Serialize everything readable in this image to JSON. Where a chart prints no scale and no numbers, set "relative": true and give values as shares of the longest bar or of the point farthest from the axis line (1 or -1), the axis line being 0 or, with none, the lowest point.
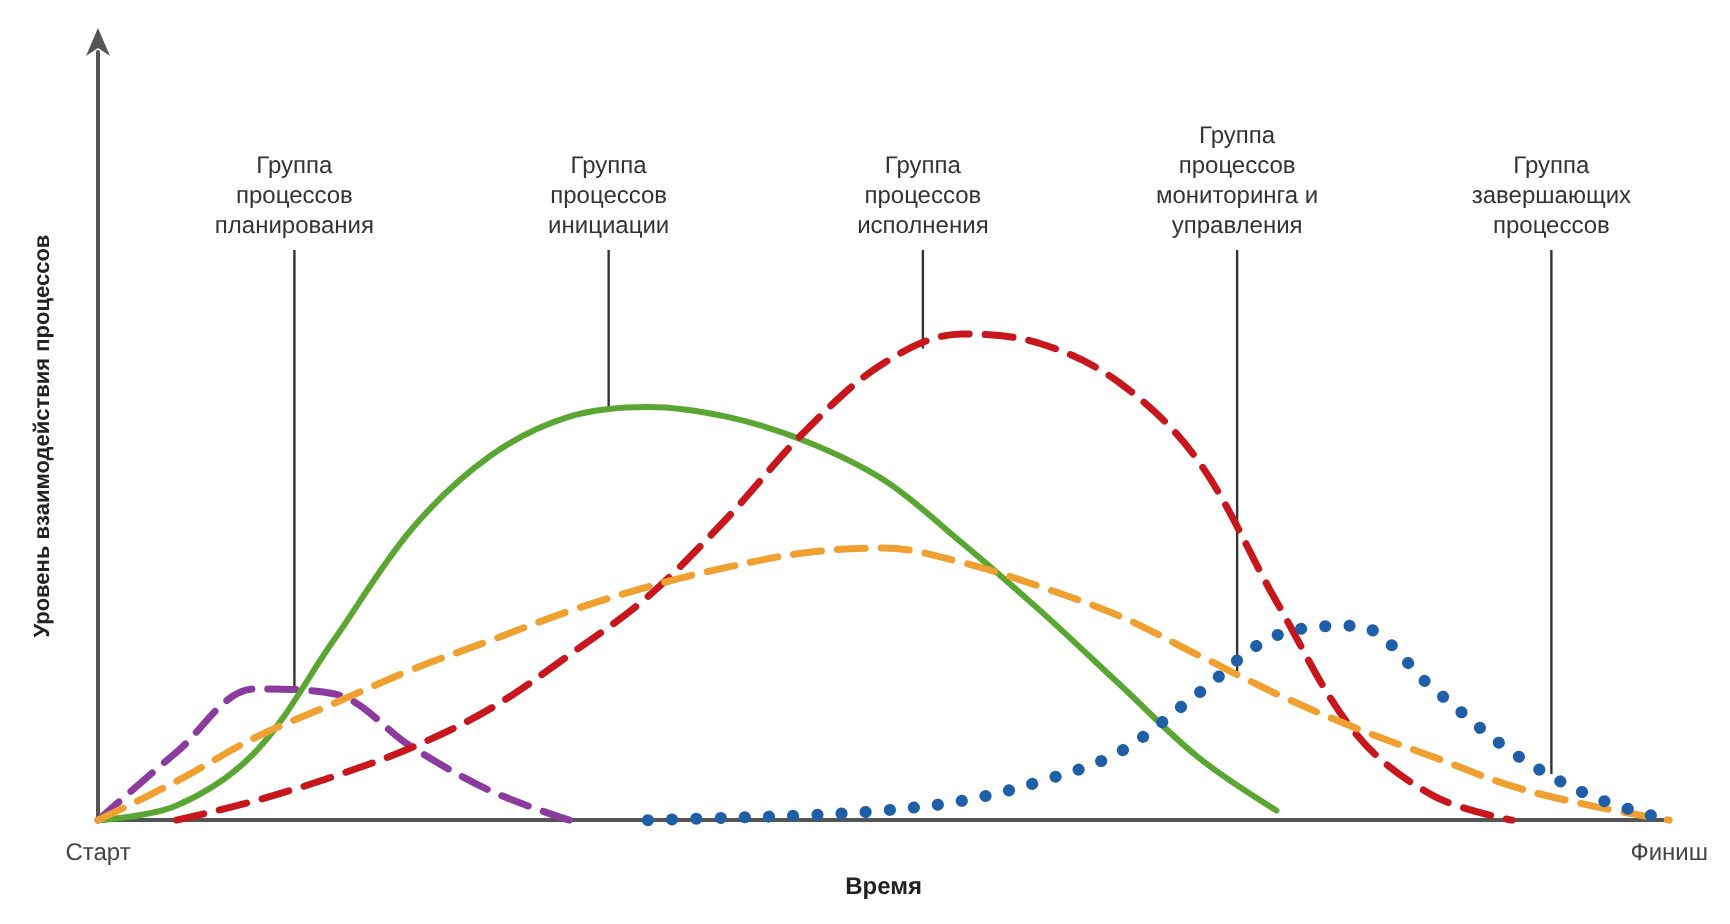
{
  "chart_data": {
    "type": "line",
    "relative": true,
    "ylabel": "Уровень взаимодействия процессов",
    "xlabel": "Время",
    "marker": "none",
    "grid": false,
    "categories": [
      "Старт",
      null,
      null,
      null,
      null,
      null,
      null,
      null,
      null,
      null,
      null,
      null,
      null,
      null,
      null,
      null,
      null,
      null,
      null,
      null,
      "Финиш"
    ],
    "series": [
      {
        "color": "#8b3a9e",
        "line_style": "dashed",
        "values": [
          0,
          0.14,
          0.27,
          0.26,
          0.15,
          0.06,
          0,
          null,
          null,
          null,
          null,
          null,
          null,
          null,
          null,
          null,
          null,
          null,
          null,
          null,
          null
        ]
      },
      {
        "color": "#5aa632",
        "line_style": "solid",
        "values": [
          0,
          0.03,
          0.14,
          0.37,
          0.6,
          0.75,
          0.83,
          0.85,
          0.83,
          0.78,
          0.7,
          0.57,
          0.43,
          0.28,
          0.13,
          0.02,
          null,
          null,
          null,
          null,
          null
        ]
      },
      {
        "color": "#c8161d",
        "line_style": "dashed",
        "values": [
          null,
          0,
          0.04,
          0.09,
          0.15,
          0.23,
          0.34,
          0.46,
          0.62,
          0.8,
          0.94,
          1,
          0.98,
          0.9,
          0.74,
          0.45,
          0.18,
          0.05,
          0,
          null,
          null
        ]
      },
      {
        "color": "#f0a030",
        "line_style": "dashed",
        "values": [
          0,
          0.08,
          0.17,
          0.24,
          0.31,
          0.37,
          0.43,
          0.48,
          0.52,
          0.55,
          0.56,
          0.53,
          0.48,
          0.42,
          0.34,
          0.26,
          0.19,
          0.13,
          0.07,
          0.03,
          0
        ]
      },
      {
        "color": "#1f5fa8",
        "line_style": "dotted",
        "values": [
          null,
          null,
          null,
          null,
          null,
          null,
          null,
          0,
          0.005,
          0.01,
          0.02,
          0.04,
          0.08,
          0.14,
          0.26,
          0.38,
          0.4,
          0.27,
          0.14,
          0.05,
          0
        ]
      }
    ],
    "annotations": [
      "Группа процессов планирования",
      "Группа процессов инициации",
      "Группа процессов исполнения",
      "Группа процессов мониторинга и управления",
      "Группа завершающих процессов"
    ]
  }
}
